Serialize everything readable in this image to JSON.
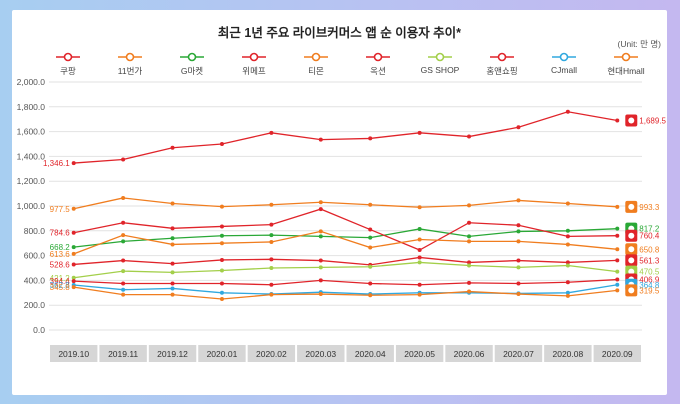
{
  "chart_data": {
    "type": "line",
    "title": "최근 1년 주요 라이브커머스 앱 순 이용자 추이*",
    "unit": "(Unit: 만 명)",
    "categories": [
      "2019.10",
      "2019.11",
      "2019.12",
      "2020.01",
      "2020.02",
      "2020.03",
      "2020.04",
      "2020.05",
      "2020.06",
      "2020.07",
      "2020.08",
      "2020.09"
    ],
    "ylim": [
      0,
      2000
    ],
    "yticks": [
      "0.0",
      "200.0",
      "400.0",
      "600.0",
      "800.0",
      "1,000.0",
      "1,200.0",
      "1,400.0",
      "1,600.0",
      "1,800.0",
      "2,000.0"
    ],
    "grid": true,
    "legend_position": "top",
    "series": [
      {
        "name": "쿠팡",
        "color": "#e0242a",
        "values": [
          1346.1,
          1375,
          1470,
          1500,
          1590,
          1535,
          1545,
          1590,
          1560,
          1635,
          1760,
          1689.5
        ],
        "first_label": "1,346.1",
        "last_label": "1,689.5"
      },
      {
        "name": "11번가",
        "color": "#f07d1f",
        "values": [
          977.5,
          1065,
          1020,
          995,
          1010,
          1030,
          1010,
          990,
          1005,
          1045,
          1020,
          993.3
        ],
        "first_label": "977.5",
        "last_label": "993.3"
      },
      {
        "name": "G마켓",
        "color": "#2aa836",
        "values": [
          668.2,
          715,
          740,
          760,
          765,
          755,
          745,
          815,
          755,
          795,
          800,
          817.2
        ],
        "first_label": "668.2",
        "last_label": "817.2"
      },
      {
        "name": "위메프",
        "color": "#e0242a",
        "values": [
          784.6,
          865,
          820,
          835,
          850,
          975,
          810,
          645,
          865,
          845,
          755,
          760.4
        ],
        "first_label": "784.6",
        "last_label": "760.4"
      },
      {
        "name": "티몬",
        "color": "#f07d1f",
        "values": [
          613.6,
          765,
          690,
          700,
          710,
          795,
          665,
          730,
          715,
          715,
          690,
          650.8
        ],
        "first_label": "613.6",
        "last_label": "650.8"
      },
      {
        "name": "옥션",
        "color": "#e0242a",
        "values": [
          528.6,
          560,
          535,
          565,
          570,
          560,
          525,
          585,
          545,
          560,
          545,
          561.3
        ],
        "first_label": "528.6",
        "last_label": "561.3"
      },
      {
        "name": "GS SHOP",
        "color": "#a3cf4a",
        "values": [
          421.2,
          475,
          465,
          480,
          500,
          505,
          510,
          545,
          520,
          505,
          520,
          470.5
        ],
        "first_label": "421.2",
        "last_label": "470.5"
      },
      {
        "name": "홈앤쇼핑",
        "color": "#e0242a",
        "values": [
          394.4,
          375,
          375,
          375,
          365,
          400,
          375,
          365,
          380,
          375,
          385,
          406.9
        ],
        "first_label": "394.4",
        "last_label": "406.9"
      },
      {
        "name": "CJmall",
        "color": "#30a8df",
        "values": [
          362.8,
          325,
          335,
          300,
          290,
          305,
          290,
          300,
          300,
          295,
          300,
          364.8
        ],
        "first_label": "362.8",
        "last_label": "364.8"
      },
      {
        "name": "현대Hmall",
        "color": "#f07d1f",
        "values": [
          345.8,
          285,
          285,
          250,
          285,
          290,
          280,
          285,
          310,
          290,
          275,
          319.5
        ],
        "first_label": "345.8",
        "last_label": "319.5"
      }
    ]
  }
}
